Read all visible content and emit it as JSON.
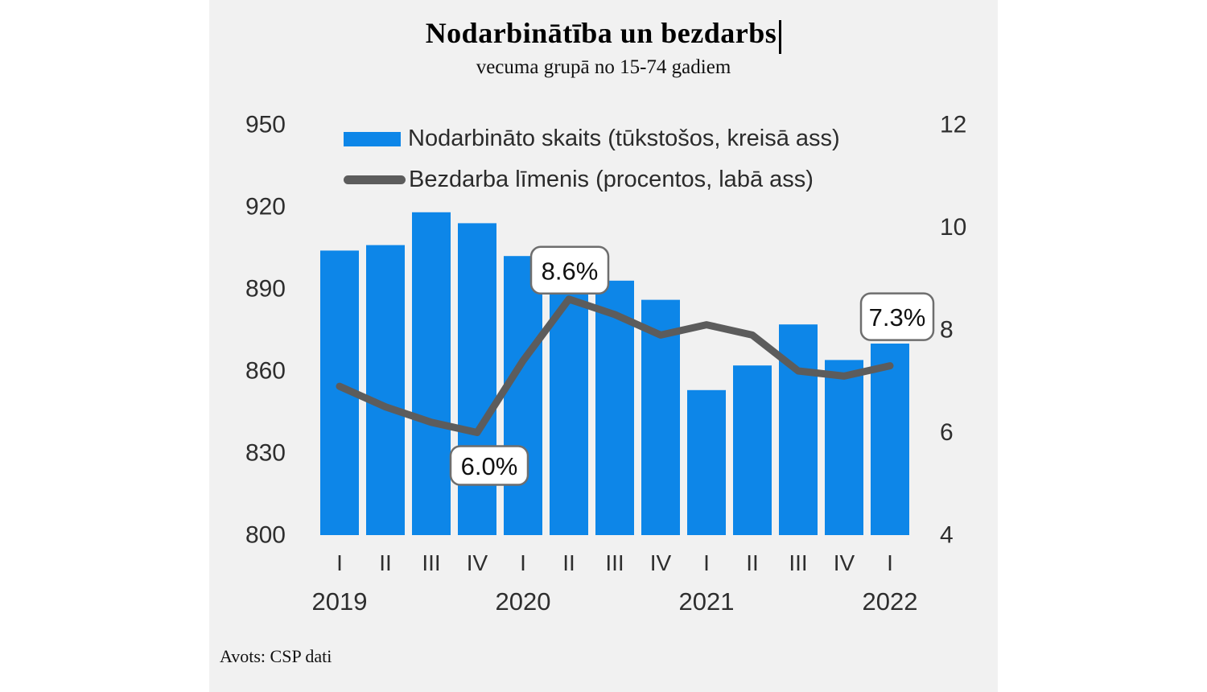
{
  "page": {
    "background": "#ffffff",
    "panel_background": "#f1f1f1"
  },
  "chart_data": {
    "type": "bar",
    "subtype": "bar-line-combo",
    "title": "Nodarbinātība un bezdarbs",
    "subtitle": "vecuma grupā no 15-74 gadiem",
    "source": "Avots: CSP dati",
    "categories": [
      "I",
      "II",
      "III",
      "IV",
      "I",
      "II",
      "III",
      "IV",
      "I",
      "II",
      "III",
      "IV",
      "I"
    ],
    "year_labels": [
      {
        "label": "2019",
        "index": 0
      },
      {
        "label": "2020",
        "index": 4
      },
      {
        "label": "2021",
        "index": 8
      },
      {
        "label": "2022",
        "index": 12
      }
    ],
    "series": [
      {
        "name": "Nodarbināto skaits (tūkstošos, kreisā ass)",
        "type": "bar",
        "axis": "left",
        "color": "#0d86e8",
        "values": [
          904,
          906,
          918,
          914,
          902,
          890,
          893,
          886,
          853,
          862,
          877,
          864,
          870
        ]
      },
      {
        "name": "Bezdarba līmenis (procentos, labā ass)",
        "type": "line",
        "axis": "right",
        "color": "#5c5c5c",
        "values": [
          6.9,
          6.5,
          6.2,
          6.0,
          7.4,
          8.6,
          8.3,
          7.9,
          8.1,
          7.9,
          7.2,
          7.1,
          7.3
        ]
      }
    ],
    "left_axis": {
      "min": 800,
      "max": 950,
      "ticks": [
        950,
        920,
        890,
        860,
        830,
        800
      ]
    },
    "right_axis": {
      "min": 4,
      "max": 12,
      "ticks": [
        12,
        10,
        8,
        6,
        4
      ]
    },
    "callouts": [
      {
        "label": "6.0%",
        "series": 1,
        "index": 3,
        "placement": "below"
      },
      {
        "label": "8.6%",
        "series": 1,
        "index": 5,
        "placement": "above"
      },
      {
        "label": "7.3%",
        "series": 1,
        "index": 12,
        "placement": "above"
      }
    ],
    "grid": "off",
    "legend_position": "top-left-inside",
    "text_color": "#2e2e2e",
    "callout_border_color": "#6e6e6e",
    "callout_bg": "#ffffff"
  }
}
